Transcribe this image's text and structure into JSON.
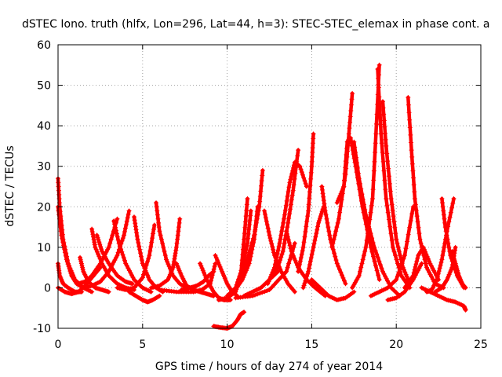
{
  "chart_data": {
    "type": "scatter",
    "title": "dSTEC Iono. truth (hlfx, Lon=296, Lat=44, h=3): STEC-STEC_elemax in phase cont. a",
    "xlabel": "GPS time / hours of day 274 of year 2014",
    "ylabel": "dSTEC  / TECUs",
    "xlim": [
      0,
      25
    ],
    "ylim": [
      -10,
      60
    ],
    "xticks": [
      "0",
      "5",
      "10",
      "15",
      "20",
      "25"
    ],
    "yticks": [
      "-10",
      "0",
      "10",
      "20",
      "30",
      "40",
      "50",
      "60"
    ],
    "grid": true,
    "marker": "+",
    "color": "#ff0000",
    "series": [
      {
        "x": [
          0.0,
          0.1,
          0.3,
          0.6,
          1.0,
          1.5,
          2.0
        ],
        "y": [
          27,
          20,
          12,
          6,
          2,
          0,
          -1
        ]
      },
      {
        "x": [
          0.0,
          0.2,
          0.5,
          0.8,
          1.1,
          1.5
        ],
        "y": [
          20,
          13,
          7,
          3,
          1,
          0
        ]
      },
      {
        "x": [
          0.0,
          0.1,
          0.3,
          0.6,
          1.0,
          1.4
        ],
        "y": [
          6,
          3,
          1,
          0,
          -1,
          -1
        ]
      },
      {
        "x": [
          0.0,
          0.4,
          0.8,
          1.2,
          1.6,
          2.0,
          2.5
        ],
        "y": [
          0,
          -1,
          -1.5,
          -1,
          0.5,
          2.5,
          5
        ]
      },
      {
        "x": [
          1.3,
          1.5,
          1.8,
          2.2,
          2.6,
          3.0
        ],
        "y": [
          7.5,
          4,
          1.5,
          0,
          -0.5,
          -1
        ]
      },
      {
        "x": [
          2.0,
          2.2,
          2.6,
          3.0,
          3.5,
          4.0,
          4.5
        ],
        "y": [
          14.5,
          10,
          6,
          3,
          1,
          0,
          -0.5
        ]
      },
      {
        "x": [
          2.3,
          2.6,
          3.0,
          3.5,
          4.0,
          4.4
        ],
        "y": [
          13,
          9,
          6,
          3,
          1.5,
          1
        ]
      },
      {
        "x": [
          1.2,
          1.6,
          2.0,
          2.5,
          3.0,
          3.5
        ],
        "y": [
          1,
          1.5,
          3,
          6,
          10,
          17
        ]
      },
      {
        "x": [
          1.5,
          2.0,
          2.5,
          3.0,
          3.5,
          3.9,
          4.2
        ],
        "y": [
          0,
          0.5,
          1.5,
          4,
          8,
          13,
          19
        ]
      },
      {
        "x": [
          3.3,
          3.6,
          4.0,
          4.5,
          5.0,
          5.5
        ],
        "y": [
          16.5,
          11,
          6,
          2,
          0,
          -1
        ]
      },
      {
        "x": [
          4.5,
          4.7,
          5.0,
          5.4,
          5.8,
          6.2
        ],
        "y": [
          17.5,
          12,
          6,
          2,
          0,
          -1
        ]
      },
      {
        "x": [
          3.5,
          4.0,
          4.5,
          5.0,
          5.4,
          5.7
        ],
        "y": [
          0,
          -0.5,
          0,
          2.5,
          8,
          15.5
        ]
      },
      {
        "x": [
          5.8,
          6.0,
          6.4,
          6.8,
          7.2,
          7.6
        ],
        "y": [
          21,
          14,
          7,
          3,
          1,
          0
        ]
      },
      {
        "x": [
          4.2,
          4.6,
          5.0,
          5.3,
          5.6,
          6.0
        ],
        "y": [
          -1,
          -2,
          -3,
          -3.5,
          -3,
          -2
        ]
      },
      {
        "x": [
          5.5,
          6.0,
          6.5,
          6.8,
          7.0,
          7.2
        ],
        "y": [
          0,
          0.5,
          2,
          5,
          10,
          17
        ]
      },
      {
        "x": [
          7.0,
          7.3,
          7.6,
          8.0,
          8.4,
          8.8,
          9.2
        ],
        "y": [
          6,
          3,
          0.5,
          -0.5,
          -1,
          -1.5,
          -2
        ]
      },
      {
        "x": [
          6.0,
          7.0,
          8.0,
          8.5,
          9.0,
          9.3
        ],
        "y": [
          -0.5,
          -1,
          -1,
          -0.5,
          1,
          6
        ]
      },
      {
        "x": [
          7.3,
          7.8,
          8.2,
          8.6,
          8.9,
          9.2
        ],
        "y": [
          -0.5,
          0,
          0.5,
          1.5,
          3,
          4
        ]
      },
      {
        "x": [
          8.4,
          8.8,
          9.2,
          9.5,
          9.8,
          10.2
        ],
        "y": [
          6,
          2,
          -1,
          -2.5,
          -3,
          -3
        ]
      },
      {
        "x": [
          9.3,
          9.7,
          10.0,
          10.3,
          10.6
        ],
        "y": [
          8,
          4,
          1,
          -1,
          -2
        ]
      },
      {
        "x": [
          9.2,
          9.6,
          10.0,
          10.3,
          10.6,
          10.8,
          11.0
        ],
        "y": [
          -9.5,
          -9.8,
          -10,
          -9.5,
          -8,
          -6.5,
          -6
        ]
      },
      {
        "x": [
          9.5,
          10.0,
          10.5,
          10.8,
          11.0,
          11.2
        ],
        "y": [
          -3,
          -2.5,
          -1,
          3,
          12,
          22
        ]
      },
      {
        "x": [
          10.0,
          10.5,
          10.9,
          11.2,
          11.4
        ],
        "y": [
          -2,
          0,
          5,
          11,
          19
        ]
      },
      {
        "x": [
          10.4,
          10.9,
          11.3,
          11.6,
          11.8
        ],
        "y": [
          -1,
          2,
          6,
          12,
          20
        ]
      },
      {
        "x": [
          10.8,
          11.2,
          11.6,
          11.9,
          12.1
        ],
        "y": [
          3,
          7,
          13,
          20,
          29
        ]
      },
      {
        "x": [
          11.0,
          11.5,
          12.0,
          12.5,
          13.0
        ],
        "y": [
          -2,
          -1,
          0,
          2,
          4
        ]
      },
      {
        "x": [
          12.2,
          12.5,
          12.8,
          13.2,
          13.6,
          14.0
        ],
        "y": [
          19,
          13,
          8,
          4,
          1,
          -1
        ]
      },
      {
        "x": [
          12.4,
          12.8,
          13.1,
          13.4,
          13.7,
          14.0,
          14.3,
          14.7
        ],
        "y": [
          1,
          5,
          11,
          18,
          26,
          31,
          30,
          25
        ]
      },
      {
        "x": [
          12.9,
          13.3,
          13.6,
          13.9,
          14.2
        ],
        "y": [
          4,
          9,
          16,
          24,
          34
        ]
      },
      {
        "x": [
          10.5,
          11.5,
          12.5,
          13.5,
          14.0
        ],
        "y": [
          -2.5,
          -2,
          -0.5,
          4,
          11
        ]
      },
      {
        "x": [
          13.5,
          13.8,
          14.2,
          14.7,
          15.2,
          15.8
        ],
        "y": [
          14,
          9,
          5,
          2,
          0,
          -2
        ]
      },
      {
        "x": [
          14.2,
          14.5,
          14.8,
          15.0,
          15.1
        ],
        "y": [
          4,
          10,
          19,
          30,
          38
        ]
      },
      {
        "x": [
          14.5,
          14.8,
          15.1,
          15.4,
          15.7
        ],
        "y": [
          0,
          4,
          10,
          16,
          20
        ]
      },
      {
        "x": [
          15.6,
          15.8,
          16.1,
          16.5,
          17.0
        ],
        "y": [
          25,
          19,
          12,
          6,
          1
        ]
      },
      {
        "x": [
          15.0,
          15.5,
          16.0,
          16.5,
          17.0,
          17.5
        ],
        "y": [
          2,
          0,
          -2,
          -3,
          -2.5,
          -1
        ]
      },
      {
        "x": [
          16.5,
          16.9,
          17.1,
          17.3,
          17.6,
          18.0,
          18.5,
          19.0
        ],
        "y": [
          21,
          25,
          36,
          37,
          30,
          20,
          10,
          2
        ]
      },
      {
        "x": [
          16.2,
          16.6,
          17.0,
          17.2,
          17.4
        ],
        "y": [
          10,
          17,
          28,
          38,
          48
        ]
      },
      {
        "x": [
          17.5,
          17.8,
          18.2,
          18.7,
          19.2,
          19.7,
          20.2
        ],
        "y": [
          36,
          27,
          18,
          10,
          4,
          0,
          -2
        ]
      },
      {
        "x": [
          17.4,
          17.8,
          18.2,
          18.6,
          18.8,
          19.0
        ],
        "y": [
          0,
          3,
          10,
          22,
          38,
          55
        ]
      },
      {
        "x": [
          18.9,
          19.1,
          19.4,
          19.8,
          20.3,
          20.8
        ],
        "y": [
          54,
          38,
          22,
          10,
          3,
          0
        ]
      },
      {
        "x": [
          19.2,
          19.4,
          19.7,
          20.0,
          20.4,
          20.8
        ],
        "y": [
          46,
          35,
          22,
          12,
          5,
          1
        ]
      },
      {
        "x": [
          18.5,
          19.0,
          19.5,
          20.0,
          20.5,
          21.0
        ],
        "y": [
          -2,
          -1,
          0,
          2,
          8,
          20
        ]
      },
      {
        "x": [
          19.5,
          20.0,
          20.5,
          21.0,
          21.5
        ],
        "y": [
          -3,
          -2.5,
          -1,
          2,
          6
        ]
      },
      {
        "x": [
          20.7,
          20.9,
          21.1,
          21.4,
          21.8,
          22.3,
          22.8
        ],
        "y": [
          47,
          34,
          22,
          12,
          5,
          1,
          0
        ]
      },
      {
        "x": [
          20.5,
          21.0,
          21.3,
          21.6,
          22.0,
          22.5
        ],
        "y": [
          0,
          3,
          8,
          10,
          6,
          2
        ]
      },
      {
        "x": [
          21.8,
          22.1,
          22.4,
          22.7,
          23.0,
          23.4
        ],
        "y": [
          -1,
          -0.5,
          2,
          7,
          14,
          22
        ]
      },
      {
        "x": [
          22.7,
          22.9,
          23.2,
          23.6,
          24.0
        ],
        "y": [
          22,
          15,
          8,
          3,
          0
        ]
      },
      {
        "x": [
          23.3,
          23.5,
          23.7,
          23.9,
          24.1
        ],
        "y": [
          9,
          6,
          3,
          1,
          0
        ]
      },
      {
        "x": [
          21.5,
          22.0,
          22.5,
          23.0,
          23.5,
          24.0,
          24.1
        ],
        "y": [
          0,
          -1,
          -2,
          -3,
          -3.5,
          -4.5,
          -5.5
        ]
      },
      {
        "x": [
          22.3,
          22.7,
          23.0,
          23.3,
          23.5
        ],
        "y": [
          -1,
          0,
          2,
          5,
          10
        ]
      }
    ]
  }
}
